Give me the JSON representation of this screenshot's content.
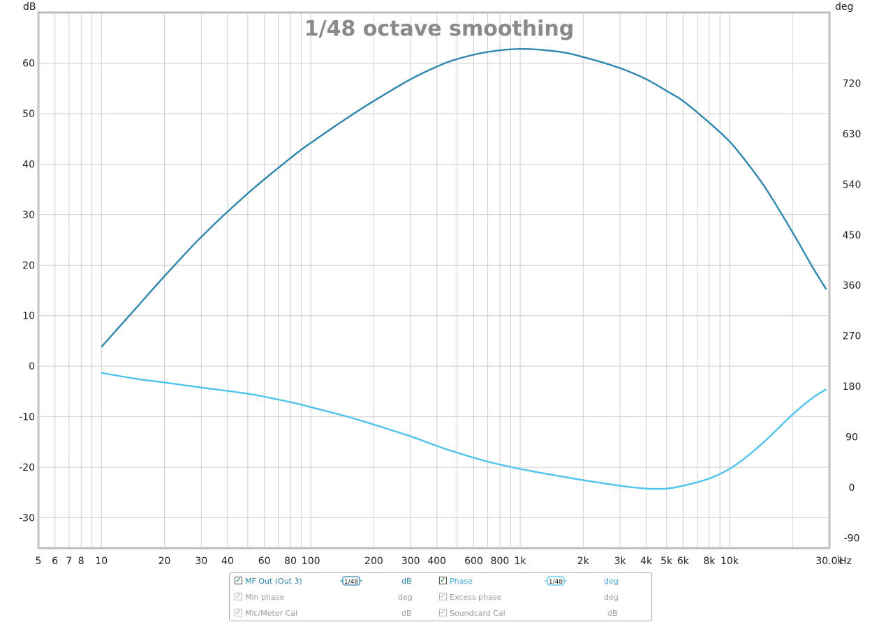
{
  "chart_data": {
    "type": "line",
    "title": "1/48 octave smoothing",
    "x_scale": "log",
    "x_unit": "Hz",
    "xlim": [
      5,
      30000
    ],
    "x_ticks": [
      {
        "v": 5,
        "label": "5"
      },
      {
        "v": 6,
        "label": "6"
      },
      {
        "v": 7,
        "label": "7"
      },
      {
        "v": 8,
        "label": "8"
      },
      {
        "v": 10,
        "label": "10"
      },
      {
        "v": 20,
        "label": "20"
      },
      {
        "v": 30,
        "label": "30"
      },
      {
        "v": 40,
        "label": "40"
      },
      {
        "v": 60,
        "label": "60"
      },
      {
        "v": 80,
        "label": "80"
      },
      {
        "v": 100,
        "label": "100"
      },
      {
        "v": 200,
        "label": "200"
      },
      {
        "v": 300,
        "label": "300"
      },
      {
        "v": 400,
        "label": "400"
      },
      {
        "v": 600,
        "label": "600"
      },
      {
        "v": 800,
        "label": "800"
      },
      {
        "v": 1000,
        "label": "1k"
      },
      {
        "v": 2000,
        "label": "2k"
      },
      {
        "v": 3000,
        "label": "3k"
      },
      {
        "v": 4000,
        "label": "4k"
      },
      {
        "v": 5000,
        "label": "5k"
      },
      {
        "v": 6000,
        "label": "6k"
      },
      {
        "v": 8000,
        "label": "8k"
      },
      {
        "v": 10000,
        "label": "10k"
      },
      {
        "v": 30000,
        "label": "30.0k"
      }
    ],
    "y_left": {
      "unit": "dB",
      "ylim": [
        -36,
        70
      ],
      "ticks": [
        60,
        50,
        40,
        30,
        20,
        10,
        0,
        -10,
        -20,
        -30
      ]
    },
    "y_right": {
      "unit": "deg",
      "ylim": [
        -108,
        846
      ],
      "ticks": [
        720,
        630,
        540,
        450,
        360,
        270,
        180,
        90,
        0,
        -90
      ]
    },
    "grid": true,
    "series": [
      {
        "name": "MF Out (Out 3)",
        "axis": "left",
        "color": "#2e86ae",
        "points": [
          [
            10,
            3.8
          ],
          [
            12,
            7.5
          ],
          [
            15,
            12
          ],
          [
            20,
            17.8
          ],
          [
            30,
            25.6
          ],
          [
            50,
            34.2
          ],
          [
            80,
            41.2
          ],
          [
            100,
            44.2
          ],
          [
            150,
            49.2
          ],
          [
            200,
            52.5
          ],
          [
            300,
            56.8
          ],
          [
            400,
            59.3
          ],
          [
            500,
            60.8
          ],
          [
            700,
            62.2
          ],
          [
            1000,
            62.8
          ],
          [
            1500,
            62.3
          ],
          [
            2000,
            61.2
          ],
          [
            3000,
            59.0
          ],
          [
            4000,
            56.8
          ],
          [
            5000,
            54.5
          ],
          [
            6000,
            52.5
          ],
          [
            8000,
            48.2
          ],
          [
            10000,
            44.5
          ],
          [
            12000,
            40.5
          ],
          [
            15000,
            35
          ],
          [
            20000,
            26.5
          ],
          [
            25000,
            19.5
          ],
          [
            29000,
            15.2
          ]
        ]
      },
      {
        "name": "Phase",
        "axis": "right",
        "color": "#4dc3ee",
        "points": [
          [
            10,
            204
          ],
          [
            15,
            193
          ],
          [
            20,
            187
          ],
          [
            30,
            178
          ],
          [
            50,
            167
          ],
          [
            80,
            152
          ],
          [
            100,
            143
          ],
          [
            150,
            126
          ],
          [
            200,
            112
          ],
          [
            300,
            91
          ],
          [
            400,
            74
          ],
          [
            500,
            62
          ],
          [
            700,
            46
          ],
          [
            1000,
            33
          ],
          [
            1500,
            21
          ],
          [
            2000,
            13
          ],
          [
            3000,
            3
          ],
          [
            4000,
            -2
          ],
          [
            5000,
            -2
          ],
          [
            6000,
            3
          ],
          [
            8000,
            16
          ],
          [
            10000,
            33
          ],
          [
            12000,
            54
          ],
          [
            15000,
            85
          ],
          [
            20000,
            130
          ],
          [
            25000,
            160
          ],
          [
            29000,
            175
          ]
        ]
      }
    ]
  },
  "legend": {
    "rows": [
      {
        "left": {
          "checked": true,
          "label": "MF Out (Out 3)",
          "smoothing": "1/48",
          "unit": "dB",
          "active": true
        },
        "right": {
          "checked": true,
          "label": "Phase",
          "smoothing": "1/48",
          "unit": "deg",
          "active": true
        }
      },
      {
        "left": {
          "checked": true,
          "label": "Min phase",
          "unit": "deg",
          "active": false
        },
        "right": {
          "checked": true,
          "label": "Excess phase",
          "unit": "deg",
          "active": false
        }
      },
      {
        "left": {
          "checked": true,
          "label": "Mic/Meter Cal",
          "unit": "dB",
          "active": false
        },
        "right": {
          "checked": true,
          "label": "Soundcard Cal",
          "unit": "dB",
          "active": false
        }
      }
    ]
  }
}
